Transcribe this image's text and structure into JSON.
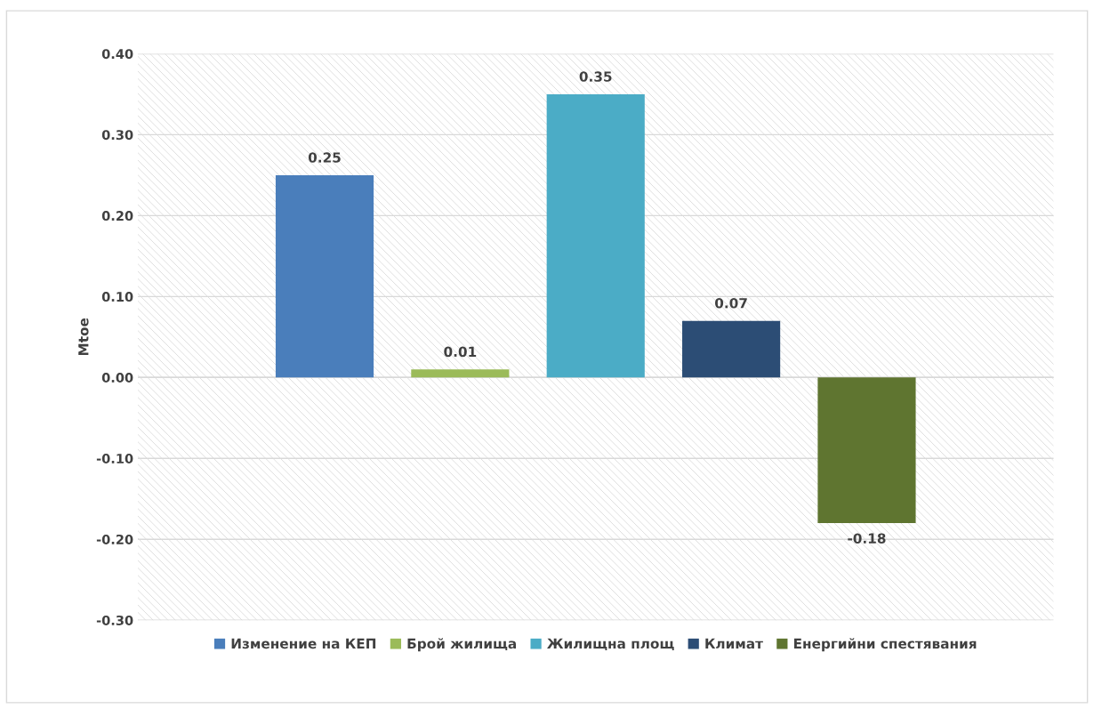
{
  "chart_data": {
    "type": "bar",
    "ylabel": "Mtoe",
    "categories": [
      null
    ],
    "series": [
      {
        "name": "Изменение на КЕП",
        "color": "#4a7ebb",
        "values": [
          0.25
        ]
      },
      {
        "name": "Брой жилища",
        "color": "#9bbb59",
        "values": [
          0.01
        ]
      },
      {
        "name": "Жилищна площ",
        "color": "#4bacc6",
        "values": [
          0.35
        ]
      },
      {
        "name": "Климат",
        "color": "#2c4d75",
        "values": [
          0.07
        ]
      },
      {
        "name": "Енергийни спестявания",
        "color": "#5f7530",
        "values": [
          -0.18
        ]
      }
    ],
    "ylim": [
      -0.3,
      0.4
    ],
    "yticks": [
      {
        "value": -0.3,
        "label": "-0.30"
      },
      {
        "value": -0.2,
        "label": "-0.20"
      },
      {
        "value": -0.1,
        "label": "-0.10"
      },
      {
        "value": 0,
        "label": "0.00"
      },
      {
        "value": 0.1,
        "label": "0.10"
      },
      {
        "value": 0.2,
        "label": "0.20"
      },
      {
        "value": 0.3,
        "label": "0.30"
      },
      {
        "value": 0.4,
        "label": "0.40"
      }
    ],
    "grid": "y",
    "legend": "bottom",
    "data_labels": true
  }
}
